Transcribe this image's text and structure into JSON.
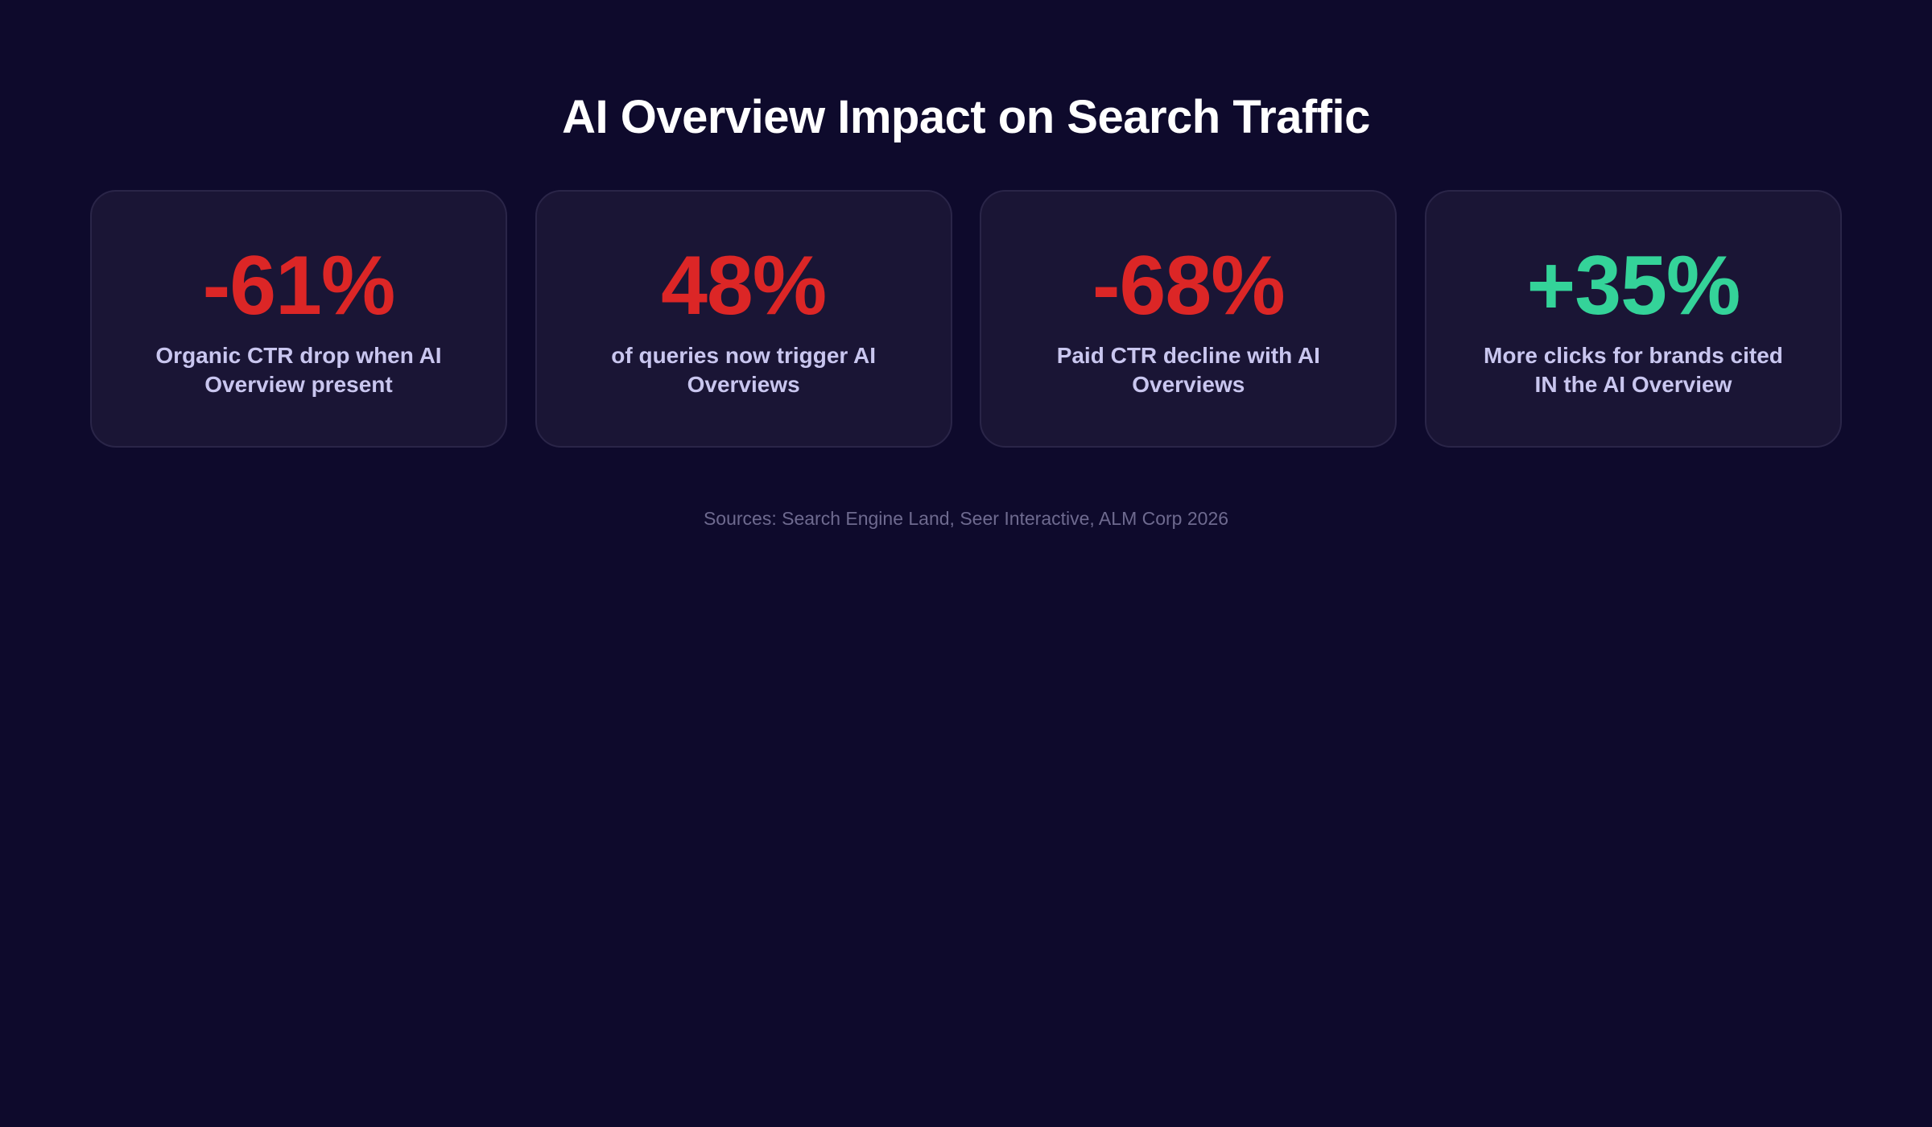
{
  "title": "AI Overview Impact on Search Traffic",
  "cards": [
    {
      "value": "-61%",
      "label": "Organic CTR drop when AI Overview present",
      "color": "#dc2626"
    },
    {
      "value": "48%",
      "label": "of queries now trigger AI Overviews",
      "color": "#dc2626"
    },
    {
      "value": "-68%",
      "label": "Paid CTR decline with AI Overviews",
      "color": "#dc2626"
    },
    {
      "value": "+35%",
      "label": "More clicks for brands cited IN the AI Overview",
      "color": "#34d399"
    }
  ],
  "sources": "Sources: Search Engine Land, Seer Interactive, ALM Corp 2026"
}
